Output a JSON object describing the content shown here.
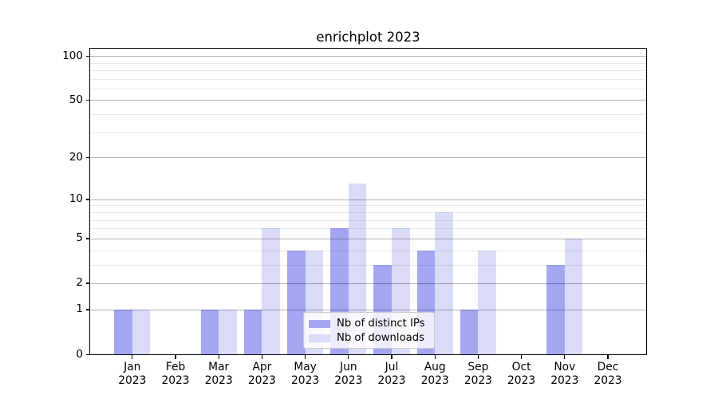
{
  "figure": {
    "title": "enrichplot 2023",
    "background_color": "#ffffff"
  },
  "chart_data": {
    "type": "bar",
    "title": "enrichplot 2023",
    "categories": [
      "Jan 2023",
      "Feb 2023",
      "Mar 2023",
      "Apr 2023",
      "May 2023",
      "Jun 2023",
      "Jul 2023",
      "Aug 2023",
      "Sep 2023",
      "Oct 2023",
      "Nov 2023",
      "Dec 2023"
    ],
    "category_months": [
      "Jan",
      "Feb",
      "Mar",
      "Apr",
      "May",
      "Jun",
      "Jul",
      "Aug",
      "Sep",
      "Oct",
      "Nov",
      "Dec"
    ],
    "category_year": "2023",
    "series": [
      {
        "name": "Nb of distinct IPs",
        "color": "#a5a6f1",
        "values": [
          1,
          0,
          1,
          1,
          4,
          6,
          3,
          4,
          1,
          0,
          3,
          0
        ]
      },
      {
        "name": "Nb of downloads",
        "color": "#dadbf8",
        "values": [
          1,
          0,
          1,
          6,
          4,
          13,
          6,
          8,
          4,
          0,
          5,
          0
        ]
      }
    ],
    "xlabel": "",
    "ylabel": "",
    "y_scale": "log1p",
    "ylim": [
      0,
      112
    ],
    "yticks": [
      0,
      1,
      2,
      5,
      10,
      20,
      50,
      100
    ],
    "y_minor_gridlines": [
      3,
      4,
      6,
      7,
      8,
      9,
      30,
      40,
      60,
      70,
      80,
      90
    ],
    "grid": "on",
    "legend_position": "lower center",
    "colors": {
      "major_grid": "#b3b3b3",
      "minor_grid": "#e9e9e9",
      "axis": "#000000",
      "legend_border": "#cccccc"
    }
  }
}
